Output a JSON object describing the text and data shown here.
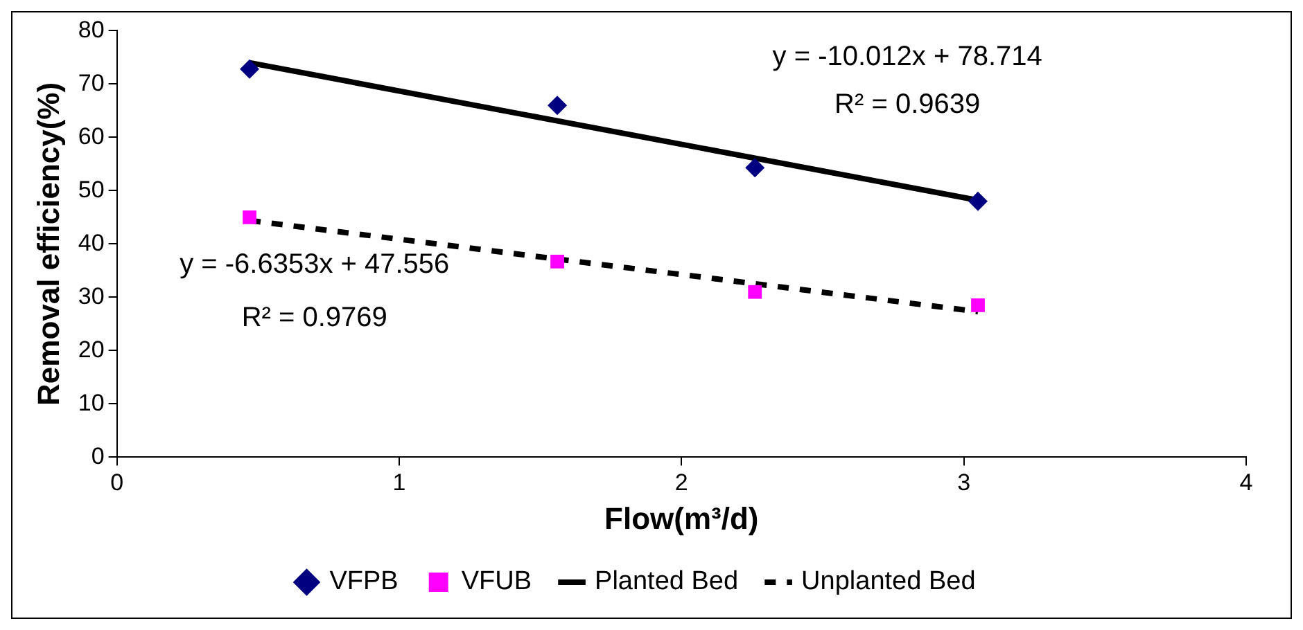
{
  "chart_data": {
    "type": "scatter",
    "xlabel": "Flow(m³/d)",
    "ylabel": "Removal efficiency(%)",
    "xlim": [
      0,
      4
    ],
    "xticks": [
      0,
      1,
      2,
      3,
      4
    ],
    "ylim": [
      0,
      80
    ],
    "yticks": [
      0,
      10,
      20,
      30,
      40,
      50,
      60,
      70,
      80
    ],
    "grid": false,
    "legend": "bottom",
    "series": [
      {
        "name": "VFPB",
        "type": "scatter",
        "marker": "diamond",
        "color": "#000080",
        "x": [
          0.47,
          1.56,
          2.26,
          3.05
        ],
        "values": [
          72.8,
          66,
          54.3,
          48
        ]
      },
      {
        "name": "VFUB",
        "type": "scatter",
        "marker": "square",
        "color": "#ff00ff",
        "x": [
          0.47,
          1.56,
          2.26,
          3.05
        ],
        "values": [
          45,
          36.7,
          31,
          28.5
        ]
      },
      {
        "name": "Planted Bed",
        "type": "line",
        "marker": "none",
        "line_style": "solid",
        "color": "#000000",
        "x": [
          0.47,
          3.05
        ],
        "values": [
          74.0,
          48.2
        ]
      },
      {
        "name": "Unplanted Bed",
        "type": "line",
        "marker": "none",
        "line_style": "dashed",
        "color": "#000000",
        "x": [
          0.47,
          3.05
        ],
        "values": [
          44.4,
          27.3
        ]
      }
    ],
    "annotations": [
      "y = -10.012x + 78.714",
      "R² = 0.9639",
      "y = -6.6353x + 47.556",
      "R² = 0.9769"
    ]
  }
}
